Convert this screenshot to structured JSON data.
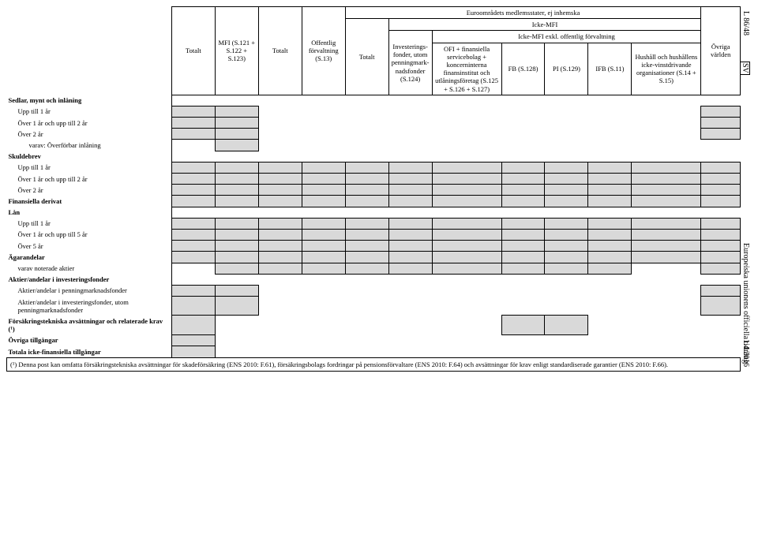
{
  "side": {
    "topleft": "L 86/48",
    "sv": "SV",
    "mid": "Europeiska unionens officiella tidning",
    "date": "1.4.2016"
  },
  "header": {
    "totalt": "Totalt",
    "mfi": "MFI (S.121 + S.122 + S.123)",
    "offentlig": "Offentlig förvaltning (S.13)",
    "euro_top": "Euroområdets medlemsstater, ej inhemska",
    "icke_mfi": "Icke-MFI",
    "icke_mfi_exkl": "Icke-MFI exkl. offentlig förvaltning",
    "invest": "Investerings­fonder, utom penningmark­nadsfonder (S.124)",
    "ofi": "OFI + finansiella servicebolag + koncerninterna finansinsti­tut och utlåningsföretag (S.125 + S.126 + S.127)",
    "fb": "FB (S.128)",
    "pi": "PI (S.129)",
    "ifb": "IFB (S.11)",
    "hushall": "Hushåll och hushål­lens icke-vinstdri­vande organisationer (S.14 + S.15)",
    "ovriga": "Övriga världen"
  },
  "rows": {
    "r1": "Sedlar, mynt och inlåning",
    "r2": "Upp till 1 år",
    "r3": "Över 1 år och upp till 2 år",
    "r4": "Över 2 år",
    "r5": "varav: Överförbar inlåning",
    "r6": "Skuldebrev",
    "r7": "Upp till 1 år",
    "r8": "Över 1 år och upp till 2 år",
    "r9": "Över 2 år",
    "r10": "Finansiella derivat",
    "r11": "Lån",
    "r12": "Upp till 1 år",
    "r13": "Över 1 år och upp till 5 år",
    "r14": "Över 5 år",
    "r15": "Ägarandelar",
    "r16": "varav noterade aktier",
    "r17": "Aktier/andelar i investeringsfonder",
    "r18": "Aktier/andelar i penningmarknadsfon­der",
    "r19": "Aktier/andelar i investeringsfonder, utom penningmarknadsfonder",
    "r20": "Försäkringstekniska avsättningar och relaterade krav (¹)",
    "r21": "Övriga tillgångar",
    "r22": "Totala icke-finansiella tillgångar"
  },
  "footnote": "(¹) Denna post kan omfatta försäkringstekniska avsättningar för skadeförsäkring (ENS 2010: F.61), försäkringsbolags fordringar på pensionsförvaltare (ENS 2010: F.64) och avsättningar för krav enligt stan­dardiserade garantier (ENS 2010: F.66)."
}
